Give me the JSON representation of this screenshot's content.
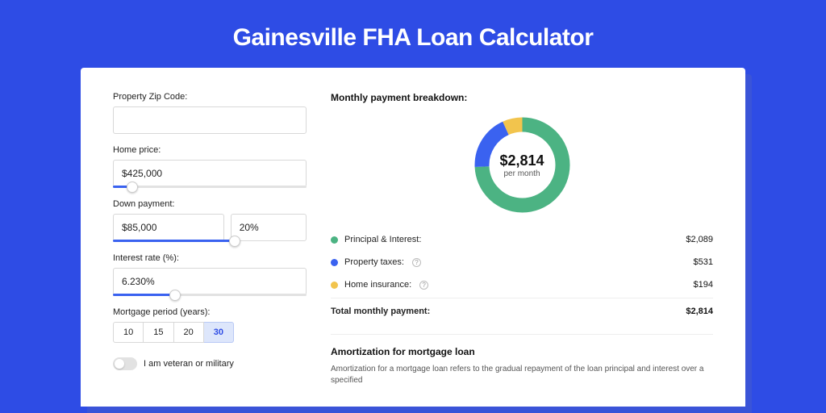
{
  "page": {
    "title": "Gainesville FHA Loan Calculator",
    "background_color": "#2e4ce5",
    "card_shadow_color": "#3a54d8"
  },
  "form": {
    "zip": {
      "label": "Property Zip Code:",
      "value": ""
    },
    "home_price": {
      "label": "Home price:",
      "value": "$425,000",
      "slider_pct": 10
    },
    "down_payment": {
      "label": "Down payment:",
      "amount": "$85,000",
      "pct": "20%",
      "slider_pct": 22
    },
    "interest_rate": {
      "label": "Interest rate (%):",
      "value": "6.230%",
      "slider_pct": 32
    },
    "period": {
      "label": "Mortgage period (years):",
      "options": [
        "10",
        "15",
        "20",
        "30"
      ],
      "selected": "30"
    },
    "veteran": {
      "label": "I am veteran or military",
      "on": false
    }
  },
  "breakdown": {
    "title": "Monthly payment breakdown:",
    "center_value": "$2,814",
    "center_sub": "per month",
    "donut": {
      "segments": [
        {
          "label": "Principal & Interest:",
          "value": "$2,089",
          "pct": 74.2,
          "color": "#4cb383"
        },
        {
          "label": "Property taxes:",
          "value": "$531",
          "pct": 18.9,
          "color": "#3a62f0",
          "info": true
        },
        {
          "label": "Home insurance:",
          "value": "$194",
          "pct": 6.9,
          "color": "#f2c44d",
          "info": true
        }
      ],
      "stroke_width": 18,
      "radius": 50,
      "bg": "#ffffff"
    },
    "total_label": "Total monthly payment:",
    "total_value": "$2,814"
  },
  "amortization": {
    "title": "Amortization for mortgage loan",
    "body": "Amortization for a mortgage loan refers to the gradual repayment of the loan principal and interest over a specified"
  }
}
